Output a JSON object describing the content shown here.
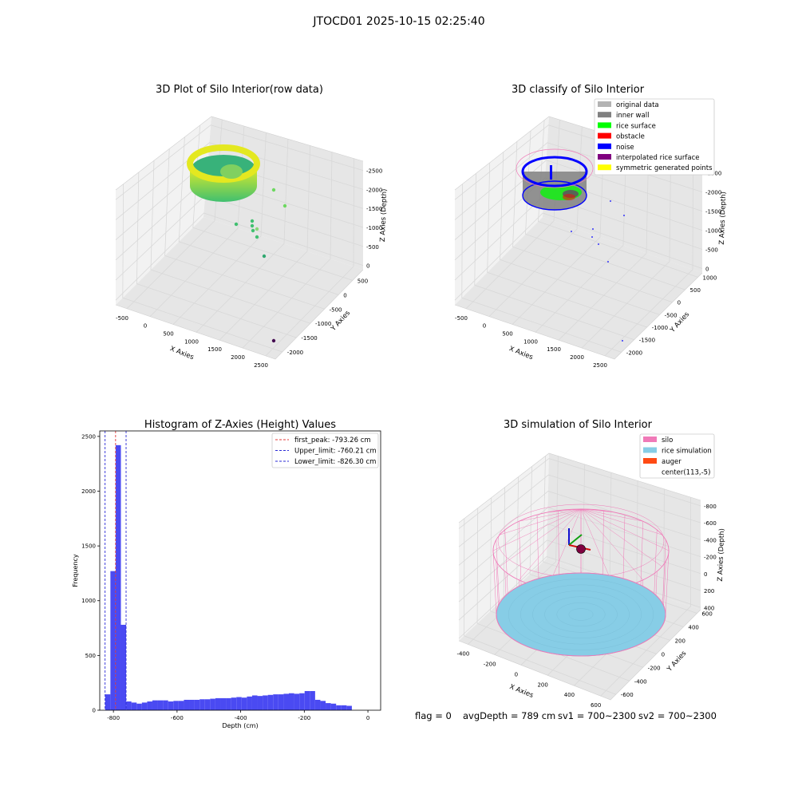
{
  "figure": {
    "suptitle": "JTOCD01 2025-10-15 02:25:40",
    "status_line": {
      "flag": "flag = 0",
      "avg_depth": "avgDepth = 789 cm",
      "sv1": "sv1 = 700~2300",
      "sv2": "sv2 = 700~2300"
    }
  },
  "colors": {
    "pane": "#f2f2f2",
    "pane_dark": "#e6e6e6",
    "grid": "#d8d8d8",
    "hist_bar": "#4a4af2",
    "first_peak": "#e23a3a",
    "limit": "#2b2bd6",
    "silo": "#f07ab8",
    "rice_simulation": "#87cde6",
    "auger": "#ff4a14",
    "original": "#b3b3b3",
    "inner_wall": "#808080",
    "rice_surface": "#00ff00",
    "obstacle": "#ff0000",
    "noise": "#0000ff",
    "interpolated": "#800080",
    "symmetric": "#ffff00"
  },
  "chart_data": [
    {
      "type": "scatter",
      "subtype": "3d",
      "title": "3D Plot of Silo Interior(row data)",
      "xlabel": "X Axies",
      "ylabel": "Y Axies",
      "zlabel": "Z Axies (Depth)",
      "x_ticks": [
        "-500",
        "0",
        "500",
        "1000",
        "1500",
        "2000",
        "2500"
      ],
      "y_ticks": [
        "500",
        "0",
        "-500",
        "-1000",
        "-1500",
        "-2000"
      ],
      "z_ticks": [
        "0",
        "-500",
        "-1000",
        "-1500",
        "-2000",
        "-2500"
      ],
      "xlim": [
        -600,
        2800
      ],
      "ylim": [
        -2100,
        800
      ],
      "zlim": [
        -2800,
        100
      ],
      "grid": true,
      "outliers": [
        {
          "x": 800,
          "y": 200,
          "z": -600
        },
        {
          "x": 950,
          "y": 300,
          "z": -900
        },
        {
          "x": 750,
          "y": -100,
          "z": -1500
        },
        {
          "x": 820,
          "y": -300,
          "z": -1700
        },
        {
          "x": 880,
          "y": -200,
          "z": -1850
        },
        {
          "x": 900,
          "y": -450,
          "z": -2350
        },
        {
          "x": 2450,
          "y": -1800,
          "z": -2650
        }
      ]
    },
    {
      "type": "scatter",
      "subtype": "3d",
      "title": "3D classify of Silo Interior",
      "xlabel": "X Axies",
      "ylabel": "Y Axies",
      "zlabel": "Z Axies (Depth)",
      "x_ticks": [
        "-500",
        "0",
        "500",
        "1000",
        "1500",
        "2000",
        "2500"
      ],
      "y_ticks": [
        "1000",
        "500",
        "0",
        "-500",
        "-1000",
        "-1500",
        "-2000"
      ],
      "z_ticks": [
        "0",
        "-500",
        "-1000",
        "-1500",
        "-2000",
        "-2500"
      ],
      "xlim": [
        -600,
        2800
      ],
      "ylim": [
        -2100,
        1100
      ],
      "zlim": [
        -2800,
        100
      ],
      "grid": true,
      "legend_placement": "top-right",
      "legend": [
        "original data",
        "inner wall",
        "rice surface",
        "obstacle",
        "noise",
        "interpolated rice surface",
        "symmetric generated points"
      ]
    },
    {
      "type": "bar",
      "title": "Histogram of Z-Axies (Height) Values",
      "xlabel": "Depth (cm)",
      "ylabel": "Frequency",
      "xlim": [
        -843,
        40
      ],
      "ylim": [
        0,
        2550
      ],
      "x_ticks": [
        -800,
        -600,
        -400,
        -200,
        0
      ],
      "y_ticks": [
        0,
        500,
        1000,
        1500,
        2000,
        2500
      ],
      "bin_start": -826,
      "bin_width": 16.5,
      "values": [
        145,
        1270,
        2420,
        780,
        80,
        70,
        60,
        70,
        80,
        90,
        90,
        90,
        80,
        85,
        85,
        95,
        95,
        95,
        100,
        100,
        105,
        110,
        110,
        110,
        115,
        120,
        115,
        125,
        135,
        130,
        135,
        140,
        145,
        145,
        150,
        155,
        150,
        155,
        175,
        175,
        95,
        85,
        65,
        60,
        45,
        45,
        40
      ],
      "vlines": [
        {
          "x": -793.26,
          "label": "first_peak: -793.26 cm",
          "color_key": "first_peak"
        },
        {
          "x": -760.21,
          "label": "Upper_limit: -760.21 cm",
          "color_key": "limit"
        },
        {
          "x": -826.3,
          "label": "Lower_limit: -826.30 cm",
          "color_key": "limit"
        }
      ],
      "legend_placement": "top-right"
    },
    {
      "type": "scatter",
      "subtype": "3d-surface",
      "title": "3D simulation of Silo Interior",
      "xlabel": "X Axies",
      "ylabel": "Y Axies",
      "zlabel": "Z Axies (Depth)",
      "x_ticks": [
        "-400",
        "-200",
        "0",
        "200",
        "400",
        "600"
      ],
      "y_ticks": [
        "600",
        "400",
        "200",
        "0",
        "-200",
        "-400",
        "-600"
      ],
      "z_ticks": [
        "400",
        "200",
        "0",
        "-200",
        "-400",
        "-600",
        "-800"
      ],
      "grid": true,
      "legend_placement": "top-right",
      "legend": [
        "silo",
        "rice simulation",
        "auger",
        "center(113,-5)"
      ],
      "rice_level": -789
    }
  ]
}
